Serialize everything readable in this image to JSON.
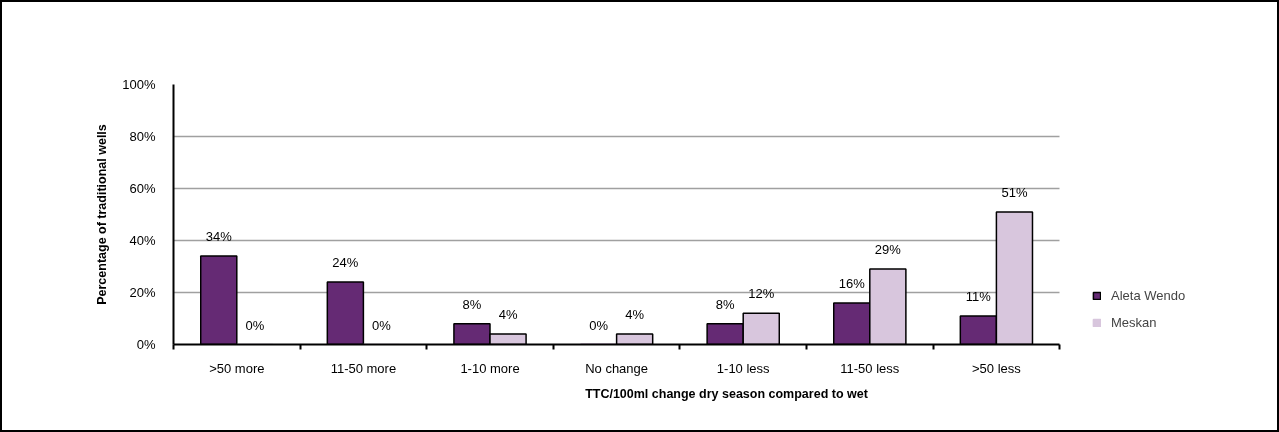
{
  "chart_data": {
    "type": "bar",
    "xlabel": "TTC/100ml change dry season compared to wet",
    "ylabel": "Percentage of traditional wells",
    "categories": [
      ">50 more",
      "11-50 more",
      "1-10 more",
      "No change",
      "1-10 less",
      "11-50 less",
      ">50 less"
    ],
    "series": [
      {
        "name": "Aleta Wendo",
        "color": "#652a74",
        "values": [
          34,
          24,
          8,
          0,
          8,
          16,
          11
        ],
        "value_labels": [
          "34%",
          "24%",
          "8%",
          "0%",
          "8%",
          "16%",
          "11%"
        ]
      },
      {
        "name": "Meskan",
        "color": "#d8c6dd",
        "values": [
          0,
          0,
          4,
          4,
          12,
          29,
          51
        ],
        "value_labels": [
          "0%",
          "0%",
          "4%",
          "4%",
          "12%",
          "29%",
          "51%"
        ]
      }
    ],
    "ylim": [
      0,
      100
    ],
    "yticks": [
      {
        "value": 0,
        "label": "0%"
      },
      {
        "value": 20,
        "label": "20%"
      },
      {
        "value": 40,
        "label": "40%"
      },
      {
        "value": 60,
        "label": "60%"
      },
      {
        "value": 80,
        "label": "80%"
      },
      {
        "value": 100,
        "label": "100%"
      }
    ],
    "grid": "y",
    "legend": "right"
  }
}
